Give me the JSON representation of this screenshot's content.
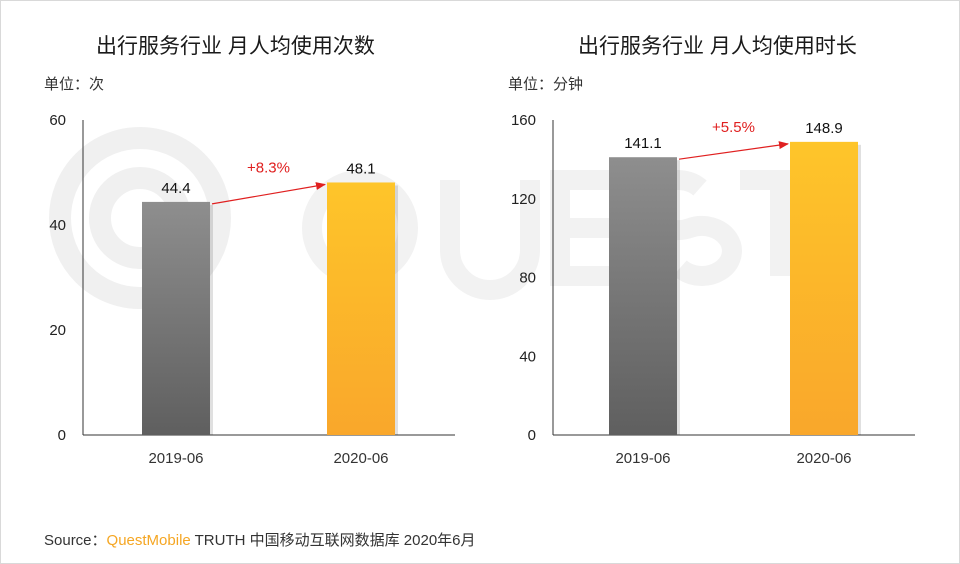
{
  "source": {
    "prefix": "Source：",
    "brand": "QuestMobile",
    "suffix": " TRUTH 中国移动互联网数据库 2020年6月"
  },
  "colors": {
    "bar_2019": "#7a7a7a",
    "bar_2020": "#fbb62a",
    "growth_arrow": "#e02020",
    "axis": "#333333"
  },
  "chart_data": [
    {
      "type": "bar",
      "title": "出行服务行业 月人均使用次数",
      "unit_label": "单位：次",
      "categories": [
        "2019-06",
        "2020-06"
      ],
      "values": [
        44.4,
        48.1
      ],
      "value_labels": [
        "44.4",
        "48.1"
      ],
      "ylim": [
        0,
        60
      ],
      "yticks": [
        0,
        20,
        40,
        60
      ],
      "growth_label": "+8.3%",
      "grid": false,
      "legend": "none"
    },
    {
      "type": "bar",
      "title": "出行服务行业 月人均使用时长",
      "unit_label": "单位：分钟",
      "categories": [
        "2019-06",
        "2020-06"
      ],
      "values": [
        141.1,
        148.9
      ],
      "value_labels": [
        "141.1",
        "148.9"
      ],
      "ylim": [
        0,
        160
      ],
      "yticks": [
        0,
        40,
        80,
        120,
        160
      ],
      "growth_label": "+5.5%",
      "grid": false,
      "legend": "none"
    }
  ]
}
